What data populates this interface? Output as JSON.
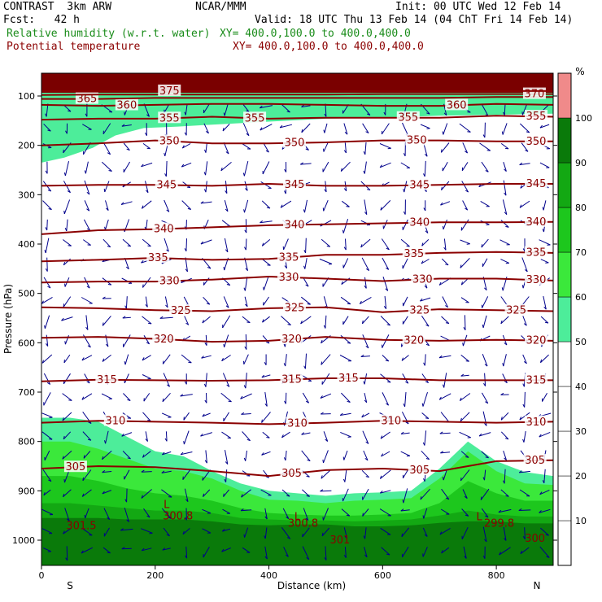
{
  "header": {
    "model": "CONTRAST  3km ARW",
    "center": "NCAR/MMM",
    "init": "Init: 00 UTC Wed 12 Feb 14",
    "fcst": "Fcst:   42 h",
    "valid": "Valid: 18 UTC Thu 13 Feb 14 (04 ChT Fri 14 Feb 14)",
    "field1": "Relative humidity (w.r.t. water)",
    "field1_xy": "XY= 400.0,100.0 to 400.0,400.0",
    "field2": "Potential temperature",
    "field2_xy": "XY= 400.0,100.0 to 400.0,400.0"
  },
  "colors": {
    "theta": "#8b0000",
    "wind": "#00008b",
    "rh_bands": [
      "#ffffff",
      "#ffffff",
      "#ffffff",
      "#ffffff",
      "#ffffff",
      "#4ded9a",
      "#3be83b",
      "#1dc71d",
      "#13a813",
      "#0a7a0a",
      "#f08a8a"
    ]
  },
  "chart_data": {
    "type": "cross-section",
    "title": "Relative humidity (w.r.t. water) and Potential temperature",
    "xlabel": "Distance (km)",
    "ylabel": "Pressure (hPa)",
    "xlim": [
      0,
      900
    ],
    "ylim": [
      1050,
      45
    ],
    "x_ticks": [
      0,
      200,
      400,
      600,
      800
    ],
    "y_ticks": [
      100,
      200,
      300,
      400,
      500,
      600,
      700,
      800,
      900,
      1000
    ],
    "x_end_labels": [
      "S",
      "N"
    ],
    "colorbar": {
      "unit": "%",
      "ticks": [
        10,
        20,
        30,
        40,
        50,
        60,
        70,
        80,
        90,
        100
      ],
      "boundaries": [
        0,
        10,
        20,
        30,
        40,
        50,
        60,
        70,
        80,
        90,
        100,
        110
      ]
    },
    "theta_contours": [
      {
        "value": 305,
        "p": [
          855,
          850,
          852,
          860,
          870,
          858,
          855,
          860,
          840,
          838
        ],
        "labels": [
          {
            "x": 60,
            "text": "305"
          },
          {
            "x": 440,
            "text": "305"
          },
          {
            "x": 665,
            "text": "305"
          },
          {
            "x": 868,
            "text": "305"
          }
        ]
      },
      {
        "value": 310,
        "p": [
          762,
          758,
          760,
          762,
          765,
          762,
          758,
          760,
          762,
          760
        ],
        "labels": [
          {
            "x": 130,
            "text": "310"
          },
          {
            "x": 450,
            "text": "310"
          },
          {
            "x": 615,
            "text": "310"
          },
          {
            "x": 870,
            "text": "310"
          }
        ]
      },
      {
        "value": 315,
        "p": [
          678,
          675,
          676,
          677,
          676,
          672,
          672,
          676,
          676,
          676
        ],
        "labels": [
          {
            "x": 115,
            "text": "315"
          },
          {
            "x": 440,
            "text": "315"
          },
          {
            "x": 540,
            "text": "315"
          },
          {
            "x": 870,
            "text": "315"
          }
        ]
      },
      {
        "value": 320,
        "p": [
          590,
          588,
          592,
          598,
          596,
          588,
          594,
          596,
          594,
          596
        ],
        "labels": [
          {
            "x": 215,
            "text": "320"
          },
          {
            "x": 440,
            "text": "320"
          },
          {
            "x": 655,
            "text": "320"
          },
          {
            "x": 870,
            "text": "320"
          }
        ]
      },
      {
        "value": 325,
        "p": [
          528,
          530,
          534,
          536,
          530,
          528,
          538,
          532,
          534,
          536
        ],
        "labels": [
          {
            "x": 245,
            "text": "325"
          },
          {
            "x": 445,
            "text": "325"
          },
          {
            "x": 665,
            "text": "325"
          },
          {
            "x": 835,
            "text": "325"
          }
        ]
      },
      {
        "value": 330,
        "p": [
          478,
          476,
          476,
          472,
          466,
          470,
          475,
          470,
          470,
          474
        ],
        "labels": [
          {
            "x": 225,
            "text": "330"
          },
          {
            "x": 435,
            "text": "330"
          },
          {
            "x": 670,
            "text": "330"
          },
          {
            "x": 870,
            "text": "330"
          }
        ]
      },
      {
        "value": 335,
        "p": [
          435,
          432,
          428,
          432,
          430,
          422,
          422,
          418,
          416,
          418
        ],
        "labels": [
          {
            "x": 205,
            "text": "335"
          },
          {
            "x": 435,
            "text": "335"
          },
          {
            "x": 655,
            "text": "335"
          },
          {
            "x": 870,
            "text": "335"
          }
        ]
      },
      {
        "value": 340,
        "p": [
          380,
          372,
          370,
          366,
          362,
          360,
          358,
          356,
          356,
          355
        ],
        "labels": [
          {
            "x": 215,
            "text": "340"
          },
          {
            "x": 445,
            "text": "340"
          },
          {
            "x": 665,
            "text": "340"
          },
          {
            "x": 870,
            "text": "340"
          }
        ]
      },
      {
        "value": 345,
        "p": [
          282,
          280,
          280,
          282,
          278,
          282,
          282,
          280,
          278,
          278
        ],
        "labels": [
          {
            "x": 220,
            "text": "345"
          },
          {
            "x": 445,
            "text": "345"
          },
          {
            "x": 665,
            "text": "345"
          },
          {
            "x": 870,
            "text": "345"
          }
        ]
      },
      {
        "value": 350,
        "p": [
          200,
          196,
          190,
          196,
          196,
          194,
          190,
          190,
          192,
          192
        ],
        "labels": [
          {
            "x": 225,
            "text": "350"
          },
          {
            "x": 445,
            "text": "350"
          },
          {
            "x": 660,
            "text": "350"
          },
          {
            "x": 870,
            "text": "350"
          }
        ]
      },
      {
        "value": 355,
        "p": [
          148,
          146,
          146,
          142,
          146,
          144,
          144,
          144,
          140,
          142
        ],
        "labels": [
          {
            "x": 225,
            "text": "355"
          },
          {
            "x": 375,
            "text": "355"
          },
          {
            "x": 645,
            "text": "355"
          },
          {
            "x": 870,
            "text": "355"
          }
        ]
      },
      {
        "value": 360,
        "p": [
          118,
          120,
          118,
          116,
          116,
          118,
          120,
          120,
          116,
          118
        ],
        "labels": [
          {
            "x": 150,
            "text": "360"
          },
          {
            "x": 730,
            "text": "360"
          }
        ]
      },
      {
        "value": 365,
        "p": [
          106,
          106,
          104,
          104,
          104,
          104,
          104,
          104,
          102,
          102
        ],
        "labels": [
          {
            "x": 80,
            "text": "365"
          }
        ]
      },
      {
        "value": 370,
        "p": [
          98,
          97,
          97,
          97,
          97,
          97,
          96,
          96,
          96,
          96
        ],
        "labels": [
          {
            "x": 867,
            "text": "370"
          }
        ]
      },
      {
        "value": 375,
        "p": [
          90,
          90,
          90,
          90,
          90,
          90,
          90,
          90,
          90,
          90
        ],
        "labels": [
          {
            "x": 225,
            "text": "375"
          }
        ]
      }
    ],
    "rh_shading": [
      {
        "band": "50-60",
        "top": [
          752,
          752,
          760,
          790,
          820,
          830,
          860,
          885,
          900,
          905,
          910,
          905,
          903,
          900,
          855,
          800,
          840,
          862,
          870
        ]
      },
      {
        "band": "60-70",
        "top": [
          800,
          800,
          815,
          835,
          855,
          860,
          875,
          900,
          918,
          920,
          925,
          920,
          918,
          915,
          875,
          820,
          860,
          885,
          888
        ]
      },
      {
        "band": "70-80",
        "top": [
          870,
          870,
          880,
          895,
          905,
          910,
          920,
          935,
          945,
          948,
          950,
          950,
          948,
          945,
          925,
          880,
          905,
          920,
          920
        ]
      },
      {
        "band": "80-90",
        "top": [
          925,
          925,
          930,
          935,
          940,
          940,
          945,
          955,
          958,
          960,
          960,
          962,
          960,
          958,
          950,
          940,
          948,
          952,
          952
        ]
      },
      {
        "band": "90-100",
        "top": [
          955,
          955,
          955,
          958,
          958,
          958,
          962,
          968,
          970,
          968,
          968,
          972,
          972,
          970,
          965,
          962,
          962,
          966,
          966
        ]
      }
    ],
    "rh_upper": [
      {
        "band": "50-60",
        "x": [
          0,
          40,
          90,
          130,
          180,
          240,
          300,
          400,
          500,
          600,
          700,
          800,
          900
        ],
        "p": [
          235,
          225,
          205,
          180,
          165,
          162,
          158,
          152,
          146,
          144,
          140,
          138,
          136
        ]
      }
    ],
    "annotations": [
      {
        "x": 70,
        "p": 978,
        "text": "301.5"
      },
      {
        "x": 240,
        "p": 958,
        "text": "300.8"
      },
      {
        "x": 460,
        "p": 973,
        "text": "300.8"
      },
      {
        "x": 525,
        "p": 1007,
        "text": "301"
      },
      {
        "x": 805,
        "p": 973,
        "text": "299.8"
      },
      {
        "x": 868,
        "p": 1003,
        "text": "300"
      },
      {
        "x": 220,
        "p": 935,
        "text": "L"
      },
      {
        "x": 450,
        "p": 960,
        "text": "L"
      },
      {
        "x": 770,
        "p": 960,
        "text": "L"
      }
    ]
  }
}
